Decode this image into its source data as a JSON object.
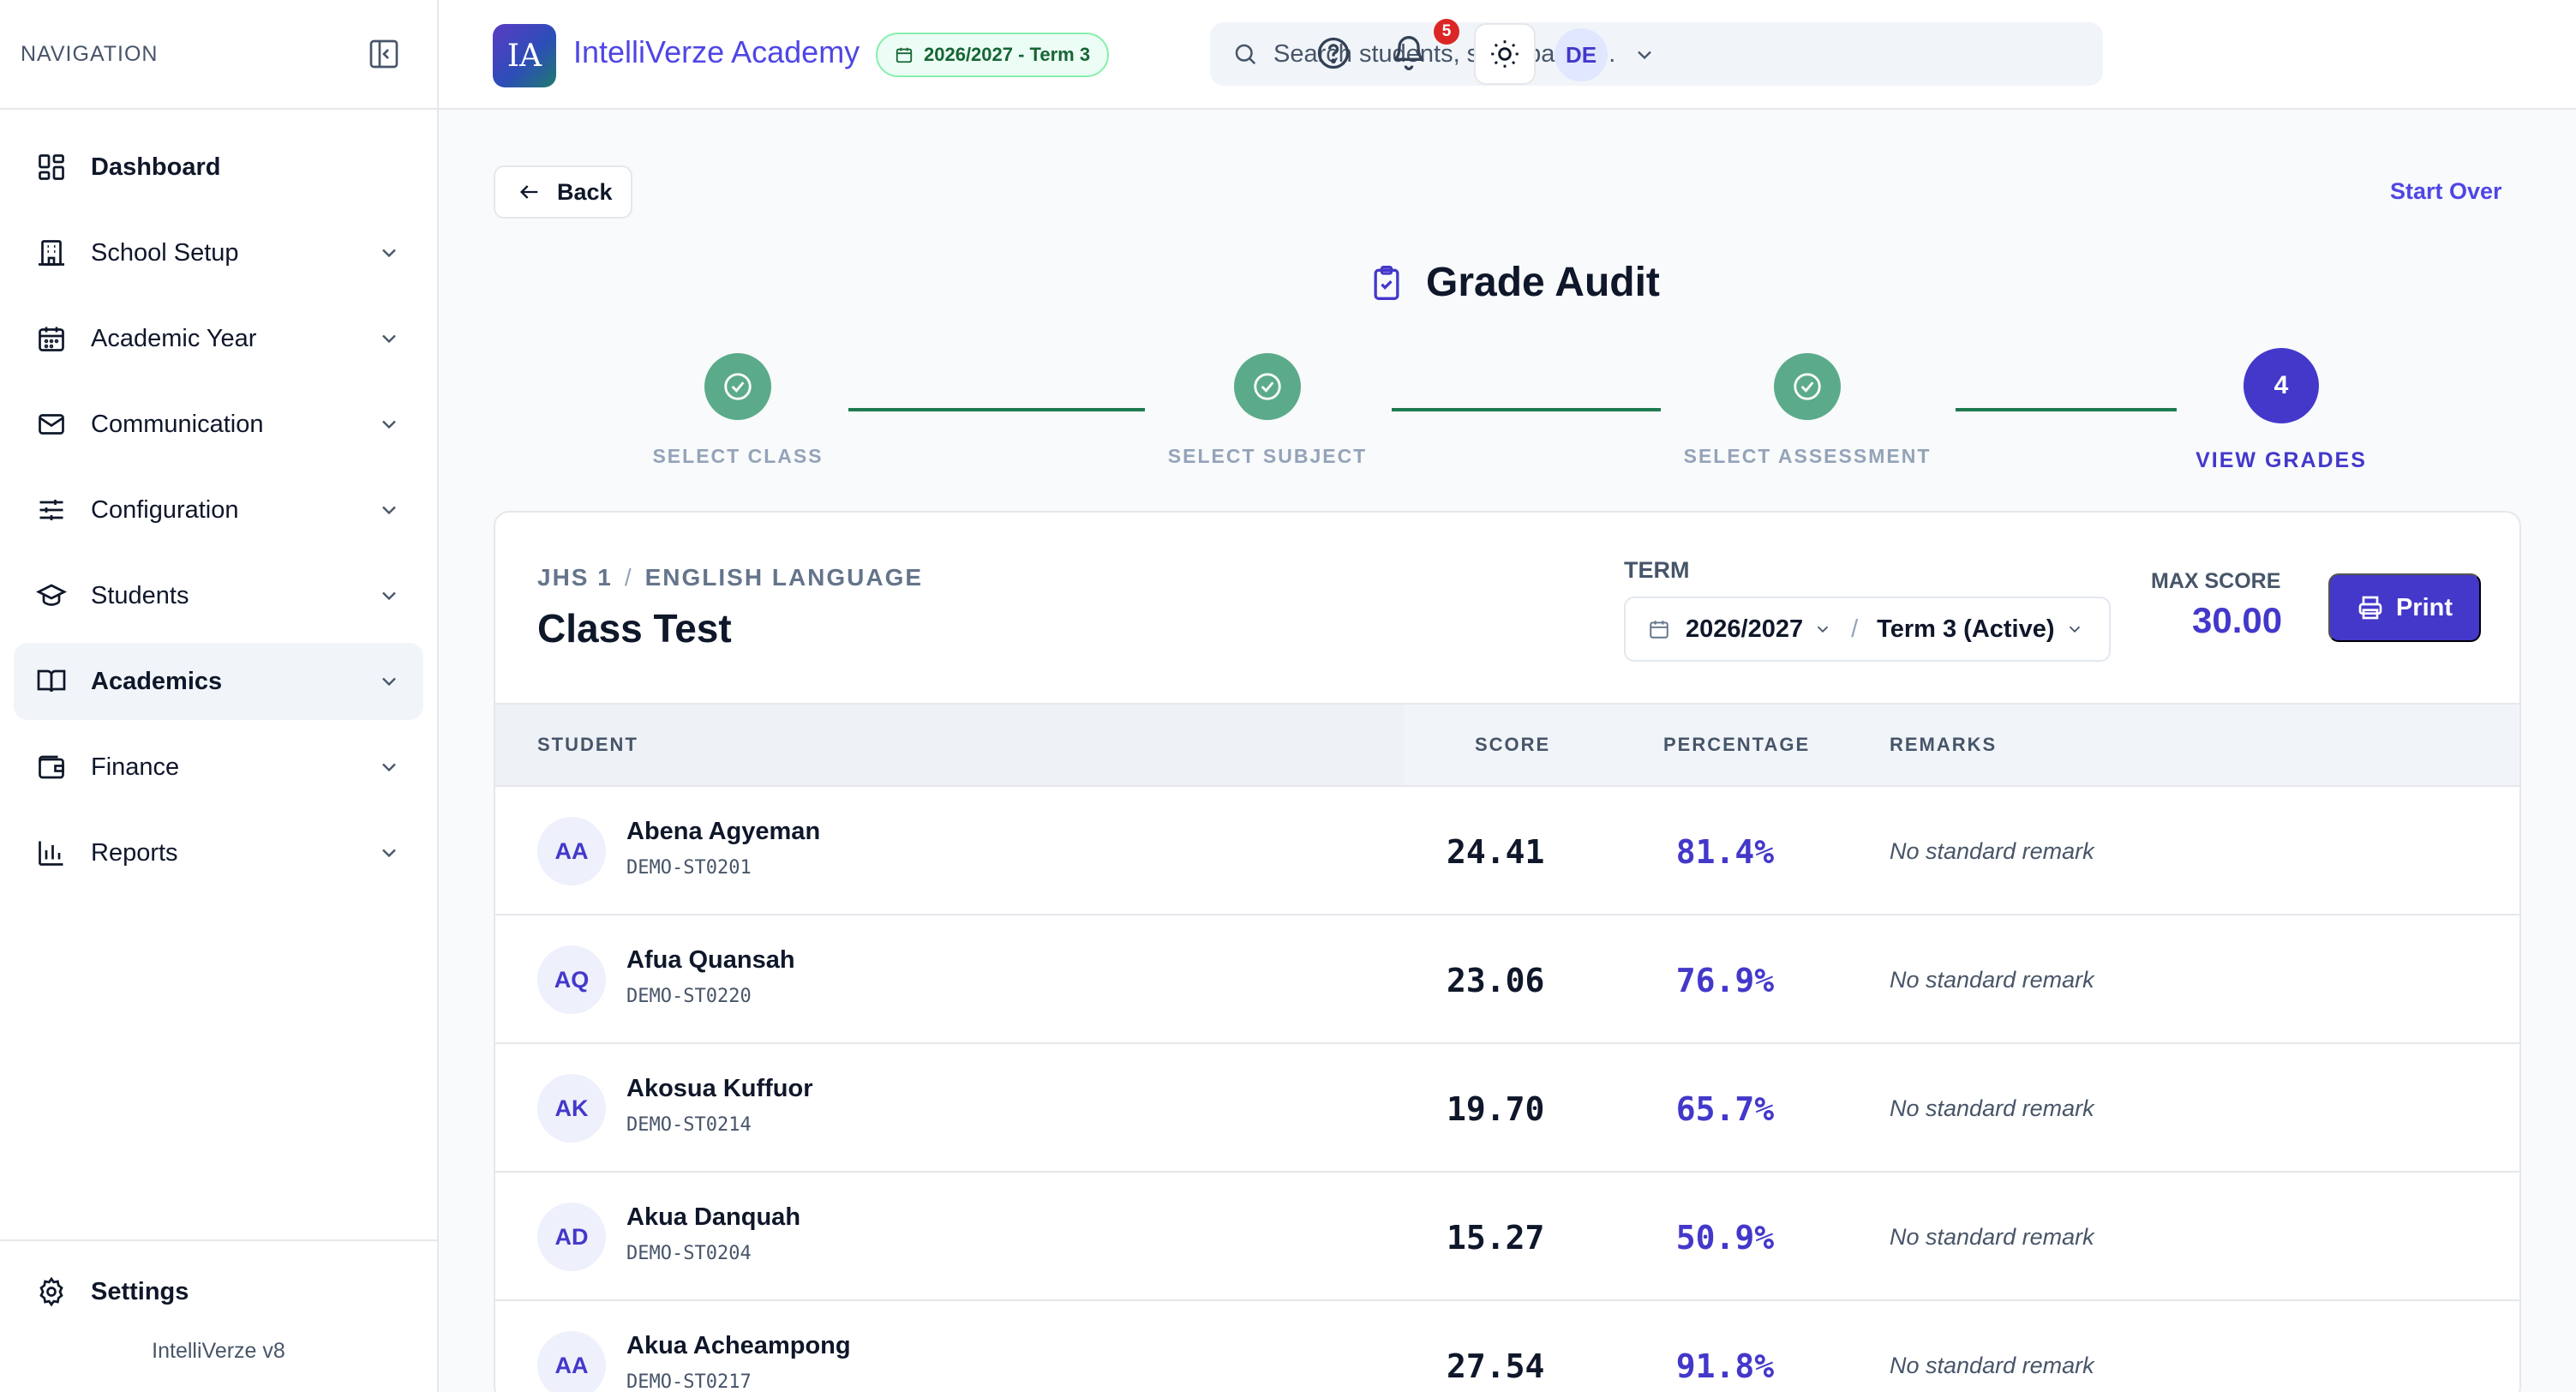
{
  "sidebar": {
    "header_label": "NAVIGATION",
    "items": [
      {
        "label": "Dashboard",
        "icon": "dashboard-icon"
      },
      {
        "label": "School Setup",
        "icon": "building-icon"
      },
      {
        "label": "Academic Year",
        "icon": "calendar-icon"
      },
      {
        "label": "Communication",
        "icon": "mail-icon"
      },
      {
        "label": "Configuration",
        "icon": "sliders-icon"
      },
      {
        "label": "Students",
        "icon": "graduation-cap-icon"
      },
      {
        "label": "Academics",
        "icon": "book-icon"
      },
      {
        "label": "Finance",
        "icon": "wallet-icon"
      },
      {
        "label": "Reports",
        "icon": "bar-chart-icon"
      }
    ],
    "footer": {
      "settings_label": "Settings",
      "version": "IntelliVerze v8"
    }
  },
  "topbar": {
    "logo_text": "IA",
    "app_title": "IntelliVerze Academy",
    "term_badge": "2026/2027 - Term 3",
    "search_placeholder": "Search students, staff, pages...",
    "notification_count": "5",
    "user_initials": "DE"
  },
  "page": {
    "back_label": "Back",
    "start_over_label": "Start Over",
    "title": "Grade Audit",
    "steps": [
      {
        "label": "SELECT CLASS",
        "state": "done"
      },
      {
        "label": "SELECT SUBJECT",
        "state": "done"
      },
      {
        "label": "SELECT ASSESSMENT",
        "state": "done"
      },
      {
        "label": "VIEW GRADES",
        "state": "current",
        "number": "4"
      }
    ]
  },
  "card": {
    "class_name": "JHS 1",
    "crumb_separator": "/",
    "subject": "ENGLISH LANGUAGE",
    "assessment": "Class Test",
    "term_label": "TERM",
    "academic_year": "2026/2027",
    "term_value": "Term 3 (Active)",
    "max_score_label": "MAX SCORE",
    "max_score": "30.00",
    "print_label": "Print",
    "columns": {
      "student": "STUDENT",
      "score": "SCORE",
      "percentage": "PERCENTAGE",
      "remarks": "REMARKS"
    },
    "rows": [
      {
        "initials": "AA",
        "name": "Abena Agyeman",
        "id": "DEMO-ST0201",
        "score": "24.41",
        "percentage": "81.4%",
        "remark": "No standard remark"
      },
      {
        "initials": "AQ",
        "name": "Afua Quansah",
        "id": "DEMO-ST0220",
        "score": "23.06",
        "percentage": "76.9%",
        "remark": "No standard remark"
      },
      {
        "initials": "AK",
        "name": "Akosua Kuffuor",
        "id": "DEMO-ST0214",
        "score": "19.70",
        "percentage": "65.7%",
        "remark": "No standard remark"
      },
      {
        "initials": "AD",
        "name": "Akua Danquah",
        "id": "DEMO-ST0204",
        "score": "15.27",
        "percentage": "50.9%",
        "remark": "No standard remark"
      },
      {
        "initials": "AA",
        "name": "Akua Acheampong",
        "id": "DEMO-ST0217",
        "score": "27.54",
        "percentage": "91.8%",
        "remark": "No standard remark"
      }
    ]
  },
  "colors": {
    "accent": "#4338ca",
    "step_done": "#5bab8a",
    "step_line": "#1e7a4f",
    "notif": "#dc2626"
  }
}
